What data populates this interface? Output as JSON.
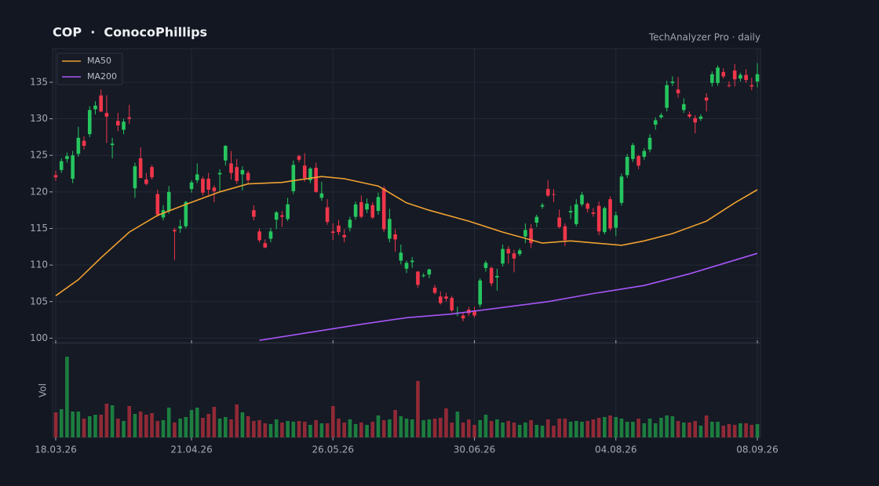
{
  "chart_data": {
    "type": "candlestick",
    "title": "COP  ·  ConocoPhillips",
    "subtitle": "TechAnalyzer Pro · daily",
    "categories": [
      "18.03.26",
      "19.03.26",
      "20.03.26",
      "23.03.26",
      "24.03.26",
      "25.03.26",
      "26.03.26",
      "27.03.26",
      "30.03.26",
      "31.03.26",
      "01.04.26",
      "02.04.26",
      "03.04.26",
      "06.04.26",
      "07.04.26",
      "08.04.26",
      "09.04.26",
      "10.04.26",
      "13.04.26",
      "14.04.26",
      "15.04.26",
      "16.04.26",
      "17.04.26",
      "20.04.26",
      "21.04.26",
      "22.04.26",
      "23.04.26",
      "24.04.26",
      "27.04.26",
      "28.04.26",
      "29.04.26",
      "30.04.26",
      "01.05.26",
      "04.05.26",
      "05.05.26",
      "06.05.26",
      "07.05.26",
      "08.05.26",
      "11.05.26",
      "12.05.26",
      "13.05.26",
      "14.05.26",
      "15.05.26",
      "18.05.26",
      "19.05.26",
      "20.05.26",
      "21.05.26",
      "22.05.26",
      "25.05.26",
      "26.05.26",
      "27.05.26",
      "28.05.26",
      "29.05.26",
      "01.06.26",
      "02.06.26",
      "03.06.26",
      "04.06.26",
      "05.06.26",
      "08.06.26",
      "09.06.26",
      "10.06.26",
      "11.06.26",
      "12.06.26",
      "15.06.26",
      "16.06.26",
      "17.06.26",
      "18.06.26",
      "19.06.26",
      "22.06.26",
      "23.06.26",
      "24.06.26",
      "25.06.26",
      "26.06.26",
      "29.06.26",
      "30.06.26",
      "01.07.26",
      "02.07.26",
      "03.07.26",
      "06.07.26",
      "07.07.26",
      "08.07.26",
      "09.07.26",
      "10.07.26",
      "13.07.26",
      "14.07.26",
      "15.07.26",
      "16.07.26",
      "17.07.26",
      "20.07.26",
      "21.07.26",
      "22.07.26",
      "23.07.26",
      "24.07.26",
      "27.07.26",
      "28.07.26",
      "29.07.26",
      "30.07.26",
      "31.07.26",
      "03.08.26",
      "04.08.26",
      "05.08.26",
      "06.08.26",
      "07.08.26",
      "10.08.26",
      "11.08.26",
      "12.08.26",
      "13.08.26",
      "14.08.26",
      "17.08.26",
      "18.08.26",
      "19.08.26",
      "20.08.26",
      "21.08.26",
      "24.08.26",
      "25.08.26",
      "26.08.26",
      "27.08.26",
      "28.08.26",
      "31.08.26",
      "01.09.26",
      "02.09.26",
      "03.09.26",
      "04.09.26",
      "07.09.26",
      "08.09.26"
    ],
    "ohlc": [
      [
        122.3,
        122.9,
        121.5,
        122.0
      ],
      [
        123.0,
        124.6,
        122.6,
        124.2
      ],
      [
        124.5,
        125.4,
        124.0,
        124.9
      ],
      [
        121.8,
        125.6,
        121.2,
        125.0
      ],
      [
        125.2,
        128.9,
        124.8,
        127.4
      ],
      [
        127.0,
        127.6,
        125.8,
        126.3
      ],
      [
        127.9,
        131.7,
        127.5,
        131.2
      ],
      [
        131.3,
        132.4,
        130.6,
        131.8
      ],
      [
        133.2,
        134.0,
        130.9,
        131.0
      ],
      [
        130.8,
        133.2,
        126.7,
        130.3
      ],
      [
        126.4,
        127.4,
        124.6,
        126.6
      ],
      [
        129.7,
        130.8,
        128.3,
        129.1
      ],
      [
        128.5,
        130.0,
        127.9,
        129.6
      ],
      [
        130.2,
        131.9,
        129.3,
        130.0
      ],
      [
        120.5,
        124.0,
        119.2,
        123.5
      ],
      [
        124.6,
        126.1,
        121.9,
        121.9
      ],
      [
        121.7,
        122.6,
        120.9,
        121.1
      ],
      [
        123.4,
        123.7,
        121.7,
        122.0
      ],
      [
        119.7,
        120.3,
        116.6,
        116.9
      ],
      [
        116.5,
        118.2,
        116.1,
        117.5
      ],
      [
        117.4,
        120.8,
        117.0,
        120.0
      ],
      [
        114.8,
        115.1,
        110.7,
        114.6
      ],
      [
        115.0,
        116.2,
        114.4,
        115.3
      ],
      [
        115.3,
        118.8,
        115.0,
        118.6
      ],
      [
        120.4,
        121.6,
        119.9,
        121.3
      ],
      [
        121.6,
        123.9,
        121.2,
        122.4
      ],
      [
        121.8,
        122.1,
        119.5,
        119.9
      ],
      [
        121.8,
        122.6,
        119.6,
        120.3
      ],
      [
        120.6,
        120.9,
        118.6,
        120.1
      ],
      [
        122.4,
        123.1,
        120.0,
        122.6
      ],
      [
        124.3,
        126.4,
        123.6,
        126.3
      ],
      [
        123.9,
        125.6,
        121.7,
        122.6
      ],
      [
        123.4,
        124.5,
        121.1,
        121.5
      ],
      [
        122.4,
        123.5,
        120.2,
        123.0
      ],
      [
        122.6,
        122.9,
        121.2,
        121.6
      ],
      [
        117.5,
        118.2,
        116.1,
        116.6
      ],
      [
        114.6,
        115.0,
        113.1,
        113.4
      ],
      [
        113.0,
        113.5,
        112.3,
        112.4
      ],
      [
        113.6,
        115.1,
        113.1,
        114.6
      ],
      [
        116.2,
        117.4,
        114.9,
        117.2
      ],
      [
        116.8,
        117.4,
        115.2,
        116.6
      ],
      [
        116.3,
        119.2,
        116.0,
        118.3
      ],
      [
        120.1,
        124.3,
        119.7,
        123.7
      ],
      [
        124.9,
        125.1,
        124.1,
        124.4
      ],
      [
        123.6,
        125.3,
        121.4,
        121.9
      ],
      [
        121.6,
        123.4,
        121.2,
        123.2
      ],
      [
        123.3,
        124.0,
        119.9,
        120.0
      ],
      [
        119.2,
        121.4,
        118.8,
        119.8
      ],
      [
        117.9,
        119.0,
        115.5,
        115.9
      ],
      [
        114.6,
        115.7,
        113.4,
        114.4
      ],
      [
        115.4,
        116.2,
        114.1,
        114.5
      ],
      [
        114.1,
        114.9,
        113.1,
        113.8
      ],
      [
        115.1,
        116.6,
        114.6,
        116.2
      ],
      [
        116.6,
        118.7,
        116.2,
        118.3
      ],
      [
        118.6,
        119.5,
        116.4,
        116.6
      ],
      [
        117.6,
        119.1,
        117.1,
        118.4
      ],
      [
        118.2,
        118.6,
        116.3,
        116.5
      ],
      [
        117.4,
        119.9,
        116.9,
        119.3
      ],
      [
        120.5,
        120.8,
        114.5,
        114.9
      ],
      [
        113.6,
        117.7,
        113.1,
        116.3
      ],
      [
        114.2,
        114.9,
        111.8,
        113.5
      ],
      [
        110.6,
        112.8,
        110.1,
        111.7
      ],
      [
        109.5,
        110.6,
        108.9,
        110.3
      ],
      [
        110.4,
        111.1,
        109.6,
        110.6
      ],
      [
        109.1,
        109.2,
        106.9,
        107.3
      ],
      [
        108.6,
        108.9,
        108.3,
        108.6
      ],
      [
        108.7,
        109.5,
        108.2,
        109.4
      ],
      [
        106.9,
        107.3,
        106.0,
        106.2
      ],
      [
        105.7,
        106.4,
        104.6,
        104.8
      ],
      [
        105.7,
        106.2,
        105.0,
        105.4
      ],
      [
        105.5,
        105.8,
        103.5,
        103.8
      ],
      [
        103.5,
        104.3,
        103.0,
        103.5
      ],
      [
        103.1,
        103.6,
        102.3,
        102.7
      ],
      [
        103.9,
        104.3,
        103.0,
        103.4
      ],
      [
        103.8,
        104.3,
        102.8,
        103.1
      ],
      [
        104.6,
        108.2,
        104.2,
        107.9
      ],
      [
        109.6,
        110.6,
        109.1,
        110.3
      ],
      [
        109.6,
        109.8,
        107.1,
        107.5
      ],
      [
        108.3,
        109.5,
        106.5,
        108.5
      ],
      [
        110.2,
        112.8,
        109.8,
        112.2
      ],
      [
        112.2,
        112.6,
        110.2,
        111.6
      ],
      [
        111.6,
        112.1,
        109.0,
        110.9
      ],
      [
        111.5,
        112.3,
        111.2,
        112.0
      ],
      [
        113.9,
        115.7,
        113.0,
        114.8
      ],
      [
        115.0,
        115.6,
        112.3,
        113.0
      ],
      [
        115.8,
        116.9,
        115.2,
        116.6
      ],
      [
        118.0,
        118.5,
        117.7,
        118.2
      ],
      [
        120.4,
        121.6,
        119.3,
        119.5
      ],
      [
        119.7,
        120.4,
        118.6,
        119.6
      ],
      [
        116.5,
        117.6,
        115.0,
        115.2
      ],
      [
        115.3,
        115.7,
        112.6,
        113.4
      ],
      [
        117.2,
        118.1,
        116.3,
        117.4
      ],
      [
        115.6,
        119.0,
        115.3,
        118.3
      ],
      [
        118.3,
        120.0,
        118.0,
        119.6
      ],
      [
        118.4,
        118.6,
        117.2,
        117.7
      ],
      [
        117.2,
        117.8,
        116.6,
        117.0
      ],
      [
        118.1,
        118.7,
        114.1,
        114.6
      ],
      [
        114.5,
        118.0,
        114.2,
        117.8
      ],
      [
        119.0,
        119.4,
        114.7,
        115.0
      ],
      [
        115.1,
        117.3,
        114.0,
        116.8
      ],
      [
        118.5,
        122.5,
        118.1,
        122.1
      ],
      [
        122.3,
        125.2,
        121.9,
        124.8
      ],
      [
        124.5,
        126.7,
        124.1,
        126.4
      ],
      [
        124.9,
        125.1,
        123.1,
        123.6
      ],
      [
        124.8,
        126.0,
        124.4,
        125.6
      ],
      [
        125.8,
        127.9,
        125.4,
        127.4
      ],
      [
        129.2,
        130.2,
        128.5,
        129.8
      ],
      [
        130.2,
        130.8,
        130.0,
        130.5
      ],
      [
        131.5,
        135.2,
        131.0,
        134.6
      ],
      [
        134.9,
        135.8,
        134.5,
        135.1
      ],
      [
        134.0,
        135.7,
        132.9,
        133.5
      ],
      [
        131.2,
        132.8,
        130.8,
        132.0
      ],
      [
        130.6,
        131.0,
        130.1,
        130.3
      ],
      [
        130.1,
        130.5,
        128.0,
        129.5
      ],
      [
        130.0,
        130.6,
        129.7,
        130.3
      ],
      [
        132.9,
        133.5,
        131.0,
        132.5
      ],
      [
        134.9,
        136.5,
        134.4,
        136.1
      ],
      [
        134.9,
        137.3,
        134.5,
        137.0
      ],
      [
        136.4,
        136.9,
        135.5,
        135.8
      ],
      [
        134.6,
        135.1,
        134.3,
        134.5
      ],
      [
        136.6,
        137.5,
        134.4,
        135.4
      ],
      [
        135.5,
        136.3,
        135.1,
        136.0
      ],
      [
        136.0,
        136.8,
        134.9,
        135.3
      ],
      [
        134.6,
        135.6,
        133.9,
        134.4
      ],
      [
        135.1,
        137.6,
        134.3,
        136.1
      ]
    ],
    "volume": [
      3.2,
      3.6,
      10.3,
      3.3,
      3.3,
      2.4,
      2.7,
      2.9,
      2.9,
      4.3,
      4.1,
      2.4,
      2.1,
      4.0,
      3.0,
      3.3,
      2.9,
      3.1,
      2.1,
      2.2,
      3.8,
      1.9,
      2.4,
      2.6,
      3.5,
      3.8,
      2.5,
      3.0,
      3.9,
      2.4,
      2.6,
      2.3,
      4.2,
      3.2,
      2.7,
      2.1,
      2.2,
      1.8,
      1.7,
      2.3,
      1.9,
      2.1,
      2.0,
      2.1,
      2.0,
      1.6,
      2.2,
      1.8,
      1.8,
      4.0,
      2.4,
      1.9,
      2.3,
      1.7,
      1.9,
      1.6,
      2.0,
      2.8,
      2.2,
      2.3,
      3.5,
      2.7,
      2.4,
      2.3,
      7.2,
      2.2,
      2.3,
      2.4,
      2.5,
      3.7,
      1.9,
      3.3,
      1.9,
      2.3,
      1.6,
      2.2,
      2.9,
      2.1,
      2.3,
      1.9,
      2.1,
      1.9,
      1.6,
      1.9,
      2.2,
      1.6,
      1.5,
      2.3,
      1.5,
      2.4,
      2.4,
      2.0,
      2.1,
      2.0,
      2.1,
      2.3,
      2.5,
      2.6,
      2.8,
      2.6,
      2.4,
      2.0,
      2.0,
      2.4,
      1.8,
      2.4,
      1.8,
      2.5,
      2.8,
      2.7,
      2.1,
      1.9,
      1.9,
      2.1,
      1.5,
      2.8,
      2.0,
      2.0,
      1.5,
      1.7,
      1.6,
      1.8,
      1.8,
      1.6,
      1.7
    ],
    "up_color": "#26c55e",
    "down_color": "#f0364a",
    "vol_up_color": "#1f9a46",
    "vol_down_color": "#b3303b",
    "series": [
      {
        "name": "MA50",
        "color": "#f0a030",
        "x": [
          "18.03.26",
          "24.03.26",
          "30.03.26",
          "06.04.26",
          "13.04.26",
          "20.04.26",
          "28.04.26",
          "05.05.26",
          "13.05.26",
          "22.05.26",
          "28.05.26",
          "05.06.26",
          "12.06.26",
          "18.06.26",
          "29.06.26",
          "07.07.26",
          "16.07.26",
          "23.07.26",
          "05.08.26",
          "11.08.26",
          "18.08.26",
          "26.08.26",
          "02.09.26",
          "08.09.26"
        ],
        "values": [
          105.8,
          108.0,
          111.0,
          114.5,
          116.8,
          118.3,
          120.0,
          121.1,
          121.3,
          122.1,
          121.8,
          120.8,
          118.5,
          117.5,
          116.0,
          114.5,
          113.0,
          113.3,
          112.7,
          113.3,
          114.3,
          116.0,
          118.5,
          120.3
        ]
      },
      {
        "name": "MA200",
        "color": "#a855f7",
        "x": [
          "07.05.26",
          "20.05.26",
          "02.06.26",
          "12.06.26",
          "24.06.26",
          "07.07.26",
          "17.07.26",
          "29.07.26",
          "11.08.26",
          "21.08.26",
          "08.09.26"
        ],
        "values": [
          99.7,
          100.8,
          101.9,
          102.8,
          103.3,
          104.2,
          105.0,
          106.1,
          107.2,
          108.8,
          111.6
        ]
      }
    ],
    "ylim": [
      99.4,
      139.6
    ],
    "yticks": [
      100,
      105,
      110,
      115,
      120,
      125,
      130,
      135
    ],
    "xticks": [
      "18.03.26",
      "21.04.26",
      "26.05.26",
      "30.06.26",
      "04.08.26",
      "08.09.26"
    ],
    "volume_label": "Vol",
    "vlim": [
      0,
      12
    ],
    "grid": true,
    "legend": "upper left"
  }
}
